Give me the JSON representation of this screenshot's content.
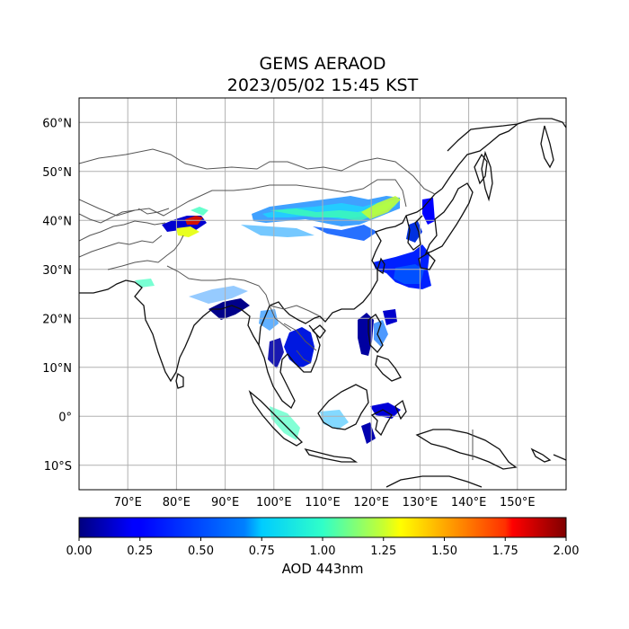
{
  "title": {
    "line1": "GEMS AERAOD",
    "line2": "2023/05/02 15:45 KST"
  },
  "map": {
    "projection": "PlateCarree",
    "lon_range": [
      60,
      160
    ],
    "lat_range": [
      -15,
      65
    ],
    "gridlines": true,
    "lon_ticks": [
      {
        "value": 70,
        "label": "70°E"
      },
      {
        "value": 80,
        "label": "80°E"
      },
      {
        "value": 90,
        "label": "90°E"
      },
      {
        "value": 100,
        "label": "100°E"
      },
      {
        "value": 110,
        "label": "110°E"
      },
      {
        "value": 120,
        "label": "120°E"
      },
      {
        "value": 130,
        "label": "130°E"
      },
      {
        "value": 140,
        "label": "140°E"
      },
      {
        "value": 150,
        "label": "150°E"
      }
    ],
    "lat_ticks": [
      {
        "value": 60,
        "label": "60°N"
      },
      {
        "value": 50,
        "label": "50°N"
      },
      {
        "value": 40,
        "label": "40°N"
      },
      {
        "value": 30,
        "label": "30°N"
      },
      {
        "value": 20,
        "label": "20°N"
      },
      {
        "value": 10,
        "label": "10°N"
      },
      {
        "value": 0,
        "label": "0°"
      },
      {
        "value": -10,
        "label": "10°S"
      }
    ]
  },
  "colorbar": {
    "colormap": "jet",
    "range": [
      0,
      2
    ],
    "ticks": [
      {
        "value": 0.0,
        "label": "0.00"
      },
      {
        "value": 0.25,
        "label": "0.25"
      },
      {
        "value": 0.5,
        "label": "0.50"
      },
      {
        "value": 0.75,
        "label": "0.75"
      },
      {
        "value": 1.0,
        "label": "1.00"
      },
      {
        "value": 1.25,
        "label": "1.25"
      },
      {
        "value": 1.5,
        "label": "1.50"
      },
      {
        "value": 1.75,
        "label": "1.75"
      },
      {
        "value": 2.0,
        "label": "2.00"
      }
    ],
    "label": "AOD 443nm"
  },
  "colors": {
    "coastline": "#111111",
    "border": "#555555",
    "grid": "#b0b0b0"
  }
}
